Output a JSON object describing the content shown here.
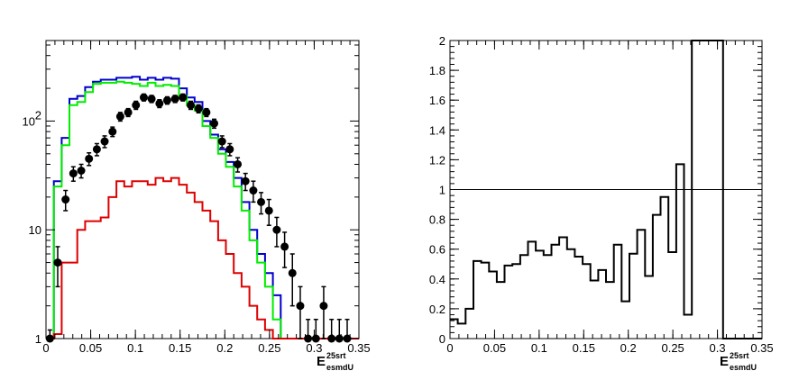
{
  "chart_data": [
    {
      "type": "line",
      "subtype": "histogram-with-points",
      "xlim": [
        0,
        0.35
      ],
      "ylim": [
        1,
        550
      ],
      "yscale": "log",
      "grid": false,
      "xticks": [
        {
          "value": 0,
          "label": "0"
        },
        {
          "value": 0.05,
          "label": "0.05"
        },
        {
          "value": 0.1,
          "label": "0.1"
        },
        {
          "value": 0.15,
          "label": "0.15"
        },
        {
          "value": 0.2,
          "label": "0.2"
        },
        {
          "value": 0.25,
          "label": "0.25"
        },
        {
          "value": 0.3,
          "label": "0.3"
        },
        {
          "value": 0.35,
          "label": "0.35"
        }
      ],
      "yticks": [
        {
          "value": 1,
          "label": "1"
        },
        {
          "value": 10,
          "label": "10"
        },
        {
          "value": 100,
          "label": "10",
          "exp": "2"
        }
      ],
      "xlabel": {
        "main": "E",
        "sup": "25srt",
        "sub": "esmdU"
      },
      "bins": {
        "start": 0,
        "width": 0.00875,
        "count": 40
      },
      "series": [
        {
          "color": "#0000cc",
          "style": "step",
          "values": [
            1,
            28,
            70,
            160,
            170,
            205,
            230,
            240,
            240,
            250,
            250,
            255,
            240,
            250,
            240,
            250,
            245,
            200,
            165,
            150,
            100,
            75,
            55,
            42,
            30,
            18,
            10,
            6,
            4,
            2.5,
            1,
            1,
            1,
            1,
            1,
            1,
            1,
            1,
            1,
            1
          ]
        },
        {
          "color": "#00ee00",
          "style": "step",
          "values": [
            1,
            25,
            60,
            140,
            150,
            185,
            220,
            225,
            225,
            230,
            225,
            220,
            210,
            225,
            210,
            215,
            210,
            170,
            140,
            125,
            90,
            70,
            50,
            38,
            25,
            15,
            8,
            5,
            3,
            1.5,
            1,
            1,
            1,
            1,
            1,
            1,
            1,
            1,
            1,
            1
          ]
        },
        {
          "color": "#dd0000",
          "style": "step",
          "values": [
            1,
            1.1,
            5,
            5,
            10,
            12,
            12,
            13,
            20,
            28,
            25,
            28,
            28,
            26,
            30,
            28,
            30,
            26,
            22,
            18,
            15,
            12,
            8,
            6,
            4,
            3,
            2,
            1.5,
            1.2,
            1,
            1,
            1,
            1,
            1,
            1,
            1,
            1,
            1,
            1,
            1
          ]
        },
        {
          "color": "#000000",
          "style": "points-with-errors",
          "points": [
            {
              "x": 0.00438,
              "y": 1,
              "err": 0.2
            },
            {
              "x": 0.0131,
              "y": 5,
              "err": 2
            },
            {
              "x": 0.0219,
              "y": 19,
              "err": 4
            },
            {
              "x": 0.0306,
              "y": 33,
              "err": 5
            },
            {
              "x": 0.0394,
              "y": 35,
              "err": 5
            },
            {
              "x": 0.0481,
              "y": 45,
              "err": 6
            },
            {
              "x": 0.0569,
              "y": 55,
              "err": 7
            },
            {
              "x": 0.0656,
              "y": 65,
              "err": 8
            },
            {
              "x": 0.0744,
              "y": 80,
              "err": 8
            },
            {
              "x": 0.0831,
              "y": 110,
              "err": 10
            },
            {
              "x": 0.0919,
              "y": 120,
              "err": 10
            },
            {
              "x": 0.1006,
              "y": 140,
              "err": 12
            },
            {
              "x": 0.1094,
              "y": 165,
              "err": 12
            },
            {
              "x": 0.1181,
              "y": 160,
              "err": 12
            },
            {
              "x": 0.1269,
              "y": 145,
              "err": 12
            },
            {
              "x": 0.1356,
              "y": 155,
              "err": 12
            },
            {
              "x": 0.1444,
              "y": 160,
              "err": 12
            },
            {
              "x": 0.1531,
              "y": 165,
              "err": 12
            },
            {
              "x": 0.1619,
              "y": 140,
              "err": 12
            },
            {
              "x": 0.1706,
              "y": 130,
              "err": 11
            },
            {
              "x": 0.1794,
              "y": 120,
              "err": 10
            },
            {
              "x": 0.1881,
              "y": 95,
              "err": 9
            },
            {
              "x": 0.1969,
              "y": 65,
              "err": 8
            },
            {
              "x": 0.2056,
              "y": 55,
              "err": 7
            },
            {
              "x": 0.2144,
              "y": 40,
              "err": 6
            },
            {
              "x": 0.2231,
              "y": 28,
              "err": 5
            },
            {
              "x": 0.2319,
              "y": 23,
              "err": 5
            },
            {
              "x": 0.2406,
              "y": 18,
              "err": 4
            },
            {
              "x": 0.2494,
              "y": 15,
              "err": 4
            },
            {
              "x": 0.2581,
              "y": 10,
              "err": 3
            },
            {
              "x": 0.2669,
              "y": 7,
              "err": 2.5
            },
            {
              "x": 0.2756,
              "y": 4,
              "err": 2
            },
            {
              "x": 0.2844,
              "y": 2,
              "err": 1
            },
            {
              "x": 0.2931,
              "y": 1,
              "err": 0.5
            },
            {
              "x": 0.3019,
              "y": 1,
              "err": 0.5
            },
            {
              "x": 0.3106,
              "y": 2,
              "err": 1
            },
            {
              "x": 0.3194,
              "y": 1,
              "err": 0.5
            },
            {
              "x": 0.3281,
              "y": 1,
              "err": 0.5
            },
            {
              "x": 0.3369,
              "y": 1,
              "err": 0.5
            }
          ]
        }
      ]
    },
    {
      "type": "line",
      "subtype": "ratio-histogram",
      "xlim": [
        0,
        0.35
      ],
      "ylim": [
        0,
        2
      ],
      "yscale": "linear",
      "grid": false,
      "xticks": [
        {
          "value": 0,
          "label": "0"
        },
        {
          "value": 0.05,
          "label": "0.05"
        },
        {
          "value": 0.1,
          "label": "0.1"
        },
        {
          "value": 0.15,
          "label": "0.15"
        },
        {
          "value": 0.2,
          "label": "0.2"
        },
        {
          "value": 0.25,
          "label": "0.25"
        },
        {
          "value": 0.3,
          "label": "0.3"
        },
        {
          "value": 0.35,
          "label": "0.35"
        }
      ],
      "yticks": [
        {
          "value": 0,
          "label": "0"
        },
        {
          "value": 0.2,
          "label": "0.2"
        },
        {
          "value": 0.4,
          "label": "0.4"
        },
        {
          "value": 0.6,
          "label": "0.6"
        },
        {
          "value": 0.8,
          "label": "0.8"
        },
        {
          "value": 1,
          "label": "1"
        },
        {
          "value": 1.2,
          "label": "1.2"
        },
        {
          "value": 1.4,
          "label": "1.4"
        },
        {
          "value": 1.6,
          "label": "1.6"
        },
        {
          "value": 1.8,
          "label": "1.8"
        },
        {
          "value": 2,
          "label": "2"
        }
      ],
      "reference_line": 1,
      "xlabel": {
        "main": "E",
        "sup": "25srt",
        "sub": "esmdU"
      },
      "bins": {
        "start": 0,
        "width": 0.00875,
        "count": 40
      },
      "series": [
        {
          "color": "#000000",
          "style": "step",
          "values": [
            0.13,
            0.1,
            0.2,
            0.52,
            0.51,
            0.45,
            0.38,
            0.49,
            0.5,
            0.56,
            0.65,
            0.59,
            0.56,
            0.63,
            0.68,
            0.6,
            0.55,
            0.5,
            0.39,
            0.46,
            0.38,
            0.63,
            0.25,
            0.57,
            0.73,
            0.42,
            0.83,
            0.95,
            0.58,
            1.17,
            0.16,
            2.0,
            2.0,
            2.0,
            2.0,
            0,
            0,
            0,
            0,
            0
          ]
        }
      ]
    }
  ]
}
